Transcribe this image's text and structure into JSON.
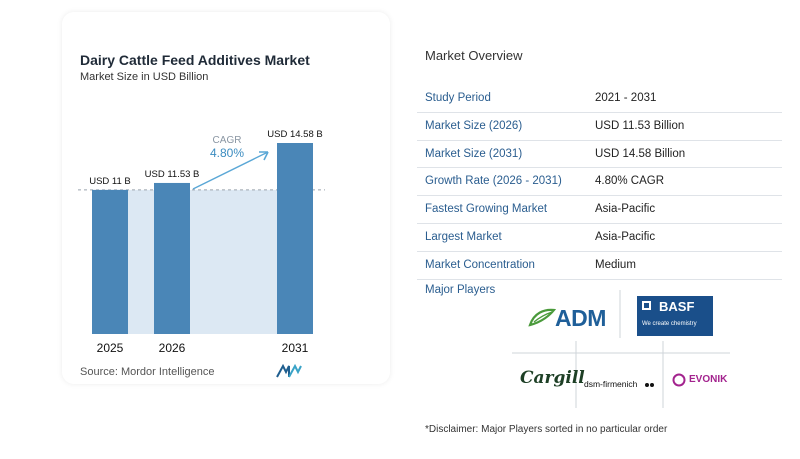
{
  "chart_data": {
    "type": "bar",
    "title": "Dairy Cattle Feed Additives Market",
    "subtitle": "Market Size in USD Billion",
    "categories": [
      "2025",
      "2026",
      "2031"
    ],
    "values": [
      11,
      11.53,
      14.58
    ],
    "data_labels": [
      "USD 11 B",
      "USD 11.53 B",
      "USD 14.58 B"
    ],
    "annotation": {
      "label": "CAGR",
      "value": "4.80%"
    },
    "bar_color": "#4a86b7",
    "highlight_color": "#dce8f3",
    "grid": false
  },
  "source": "Source:  Mordor Intelligence",
  "overview": {
    "title": "Market Overview",
    "rows": [
      {
        "key": "Study Period",
        "value": "2021 - 2031"
      },
      {
        "key": "Market Size (2026)",
        "value": "USD 11.53 Billion"
      },
      {
        "key": "Market Size (2031)",
        "value": "USD 14.58 Billion"
      },
      {
        "key": "Growth Rate (2026 - 2031)",
        "value": "4.80% CAGR"
      },
      {
        "key": "Fastest Growing Market",
        "value": "Asia-Pacific"
      },
      {
        "key": "Largest Market",
        "value": "Asia-Pacific"
      },
      {
        "key": "Market Concentration",
        "value": "Medium"
      }
    ]
  },
  "players": {
    "title": "Major Players",
    "logos": {
      "adm": "ADM",
      "basf": "BASF",
      "basf_tagline": "We create chemistry",
      "cargill": "Cargill",
      "dsm": "dsm-firmenich",
      "evonik": "EVONIK"
    }
  },
  "disclaimer": "*Disclaimer: Major Players sorted in no particular order"
}
